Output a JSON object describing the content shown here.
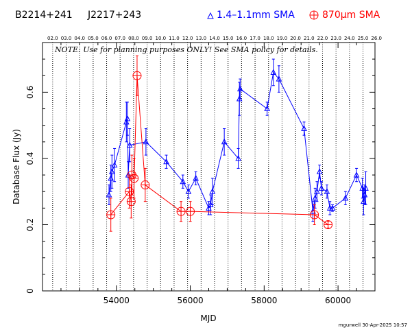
{
  "header": {
    "source_name": "B2214+241",
    "alt_name": "J2217+243",
    "legend_blue": "1.4–1.1mm SMA",
    "legend_red": "870µm SMA"
  },
  "note": "NOTE: Use for planning purposes ONLY! See SMA policy for details.",
  "footer": "mgurwell 30-Apr-2025 10:57",
  "colors": {
    "blue": "#0000ff",
    "red": "#ff0000",
    "axis": "#000000"
  },
  "chart_data": {
    "type": "scatter",
    "xlabel": "MJD",
    "ylabel": "Database Flux (Jy)",
    "xlim": [
      52000,
      61000
    ],
    "ylim": [
      0,
      0.75
    ],
    "x_ticks": [
      54000,
      56000,
      58000,
      60000
    ],
    "y_ticks": [
      0,
      0.2,
      0.4,
      0.6
    ],
    "x_tick_labels": [
      "54000",
      "56000",
      "58000",
      "60000"
    ],
    "y_tick_labels": [
      "0",
      "0.2",
      "0.4",
      "0.6"
    ],
    "top_axis_year_labels": [
      "02.0",
      "03.0",
      "04.0",
      "05.0",
      "06.0",
      "07.0",
      "08.0",
      "09.0",
      "10.0",
      "11.0",
      "12.0",
      "13.0",
      "14.0",
      "15.0",
      "16.0",
      "17.0",
      "18.0",
      "19.0",
      "20.0",
      "21.0",
      "22.0",
      "23.0",
      "24.0",
      "25.0",
      "26.0"
    ],
    "top_axis_year_mjd": [
      52275,
      52640,
      53005,
      53371,
      53736,
      54101,
      54466,
      54832,
      55197,
      55562,
      55927,
      56293,
      56658,
      57023,
      57388,
      57754,
      58119,
      58484,
      58849,
      59215,
      59580,
      59945,
      60310,
      60676,
      61041
    ],
    "grid": "vertical dotted lines at year boundaries",
    "series": [
      {
        "name": "1.4–1.1mm SMA",
        "color": "#0000ff",
        "marker": "triangle",
        "points": [
          {
            "x": 53800,
            "y": 0.29,
            "err": 0.03
          },
          {
            "x": 53850,
            "y": 0.34,
            "err": 0.04
          },
          {
            "x": 53880,
            "y": 0.36,
            "err": 0.05
          },
          {
            "x": 53950,
            "y": 0.38,
            "err": 0.05
          },
          {
            "x": 54270,
            "y": 0.51,
            "err": 0.06
          },
          {
            "x": 54300,
            "y": 0.52,
            "err": 0.05
          },
          {
            "x": 54320,
            "y": 0.35,
            "err": 0.04
          },
          {
            "x": 54360,
            "y": 0.44,
            "err": 0.05
          },
          {
            "x": 54800,
            "y": 0.45,
            "err": 0.04
          },
          {
            "x": 55350,
            "y": 0.39,
            "err": 0.02
          },
          {
            "x": 55800,
            "y": 0.33,
            "err": 0.02
          },
          {
            "x": 55950,
            "y": 0.3,
            "err": 0.02
          },
          {
            "x": 56150,
            "y": 0.34,
            "err": 0.02
          },
          {
            "x": 56500,
            "y": 0.25,
            "err": 0.02
          },
          {
            "x": 56550,
            "y": 0.26,
            "err": 0.03
          },
          {
            "x": 56600,
            "y": 0.3,
            "err": 0.04
          },
          {
            "x": 56920,
            "y": 0.45,
            "err": 0.04
          },
          {
            "x": 57300,
            "y": 0.4,
            "err": 0.03
          },
          {
            "x": 57330,
            "y": 0.58,
            "err": 0.05
          },
          {
            "x": 57350,
            "y": 0.61,
            "err": 0.03
          },
          {
            "x": 58080,
            "y": 0.55,
            "err": 0.02
          },
          {
            "x": 58250,
            "y": 0.66,
            "err": 0.04
          },
          {
            "x": 58400,
            "y": 0.64,
            "err": 0.04
          },
          {
            "x": 59080,
            "y": 0.49,
            "err": 0.02
          },
          {
            "x": 59320,
            "y": 0.24,
            "err": 0.03
          },
          {
            "x": 59380,
            "y": 0.28,
            "err": 0.03
          },
          {
            "x": 59430,
            "y": 0.3,
            "err": 0.03
          },
          {
            "x": 59500,
            "y": 0.36,
            "err": 0.02
          },
          {
            "x": 59550,
            "y": 0.31,
            "err": 0.02
          },
          {
            "x": 59700,
            "y": 0.3,
            "err": 0.02
          },
          {
            "x": 59780,
            "y": 0.25,
            "err": 0.02
          },
          {
            "x": 59850,
            "y": 0.25,
            "err": 0.01
          },
          {
            "x": 60200,
            "y": 0.28,
            "err": 0.02
          },
          {
            "x": 60500,
            "y": 0.35,
            "err": 0.02
          },
          {
            "x": 60660,
            "y": 0.31,
            "err": 0.03
          },
          {
            "x": 60690,
            "y": 0.27,
            "err": 0.04
          },
          {
            "x": 60720,
            "y": 0.29,
            "err": 0.03
          },
          {
            "x": 60750,
            "y": 0.31,
            "err": 0.05
          }
        ]
      },
      {
        "name": "870µm SMA",
        "color": "#ff0000",
        "marker": "circle-plus",
        "points": [
          {
            "x": 53850,
            "y": 0.23,
            "err": 0.05
          },
          {
            "x": 54350,
            "y": 0.3,
            "err": 0.05
          },
          {
            "x": 54400,
            "y": 0.27,
            "err": 0.05
          },
          {
            "x": 54420,
            "y": 0.35,
            "err": 0.06
          },
          {
            "x": 54480,
            "y": 0.34,
            "err": 0.06
          },
          {
            "x": 54560,
            "y": 0.65,
            "err": 0.06
          },
          {
            "x": 54780,
            "y": 0.32,
            "err": 0.05
          },
          {
            "x": 55750,
            "y": 0.24,
            "err": 0.03
          },
          {
            "x": 56000,
            "y": 0.24,
            "err": 0.03
          },
          {
            "x": 59360,
            "y": 0.23,
            "err": 0.03
          },
          {
            "x": 59730,
            "y": 0.2,
            "err": 0.01
          }
        ]
      }
    ]
  }
}
